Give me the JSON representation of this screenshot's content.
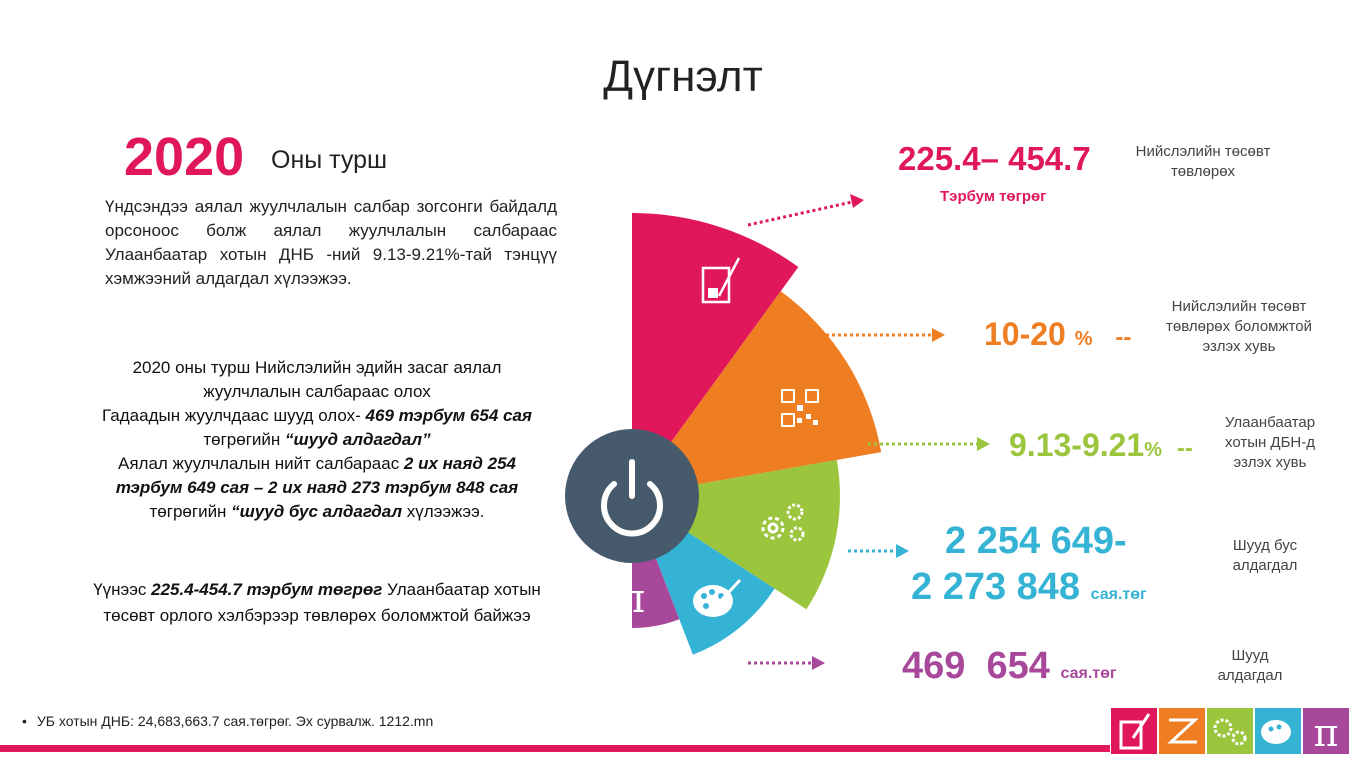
{
  "title": "Дүгнэлт",
  "year": "2020",
  "year_label": "Оны турш",
  "para1": "Үндсэндээ аялал жуулчлалын салбар зогсонги байдалд орсоноос болж аялал жуулчлалын салбараас Улаанбаатар хотын ДНБ -ний 9.13-9.21%-тай тэнцүү хэмжээний алдагдал хүлээжээ.",
  "para2": {
    "l1": "2020 оны турш Нийслэлийн  эдийн засаг аялал жуулчлалын салбараас олох",
    "l2a": "Гадаадын жуулчдаас шууд олох- ",
    "l2b": "469 тэрбум 654 сая",
    "l2c": " төгрөгийн  ",
    "l2d": "“шууд алдагдал”",
    "l3a": "Аялал жуулчлалын нийт салбараас  ",
    "l3b": "2 их наяд 254 тэрбум 649 сая – 2 их наяд 273 тэрбум 848 сая",
    "l3c": " төгрөгийн   ",
    "l3d": "“шууд бус алдагдал",
    "l3e": " хүлээжээ."
  },
  "para3": {
    "a": "Үүнээс ",
    "b": "225.4-454.7 тэрбум төгрөг",
    "c": " Улаанбаатар хотын төсөвт орлого хэлбэрээр төвлөрөх боломжтой байжээ"
  },
  "footnote": "УБ хотын ДНБ: 24,683,663.7 сая.төгрөг. Эх сурвалж. 1212.mn",
  "colors": {
    "magenta": "#e0185b",
    "orange": "#ef7d22",
    "green": "#9bc53d",
    "cyan": "#35b3d5",
    "purple": "#a8489b",
    "navy": "#465a6c"
  },
  "items": [
    {
      "value": "225.4– 454.7",
      "unit": "Тэрбум төгрөг",
      "desc": "Нийслэлийн төсөвт төвлөрөх",
      "color": "#e0185b",
      "icon": "beaker-icon"
    },
    {
      "value": "10-20",
      "unit": "%",
      "suffix": "--",
      "desc": "Нийслэлийн төсөвт төвлөрөх боломжтой эзлэх хувь",
      "color": "#ef7d22",
      "icon": "qr-code-icon"
    },
    {
      "value": "9.13-9.21",
      "unit": "%",
      "suffix": "--",
      "desc": "Улаанбаатар хотын ДБН-д эзлэх хувь",
      "color": "#9bc53d",
      "icon": "gears-icon"
    },
    {
      "value": "2 254 649-",
      "value2": "2 273 848",
      "unit": "сая.төг",
      "desc": "Шууд бус алдагдал",
      "color": "#35b3d5",
      "icon": "palette-icon"
    },
    {
      "value": "469  654",
      "unit": "сая.төг",
      "desc": "Шууд алдагдал",
      "color": "#a8489b",
      "icon": "pi-icon"
    }
  ],
  "center_icon": "power-icon"
}
